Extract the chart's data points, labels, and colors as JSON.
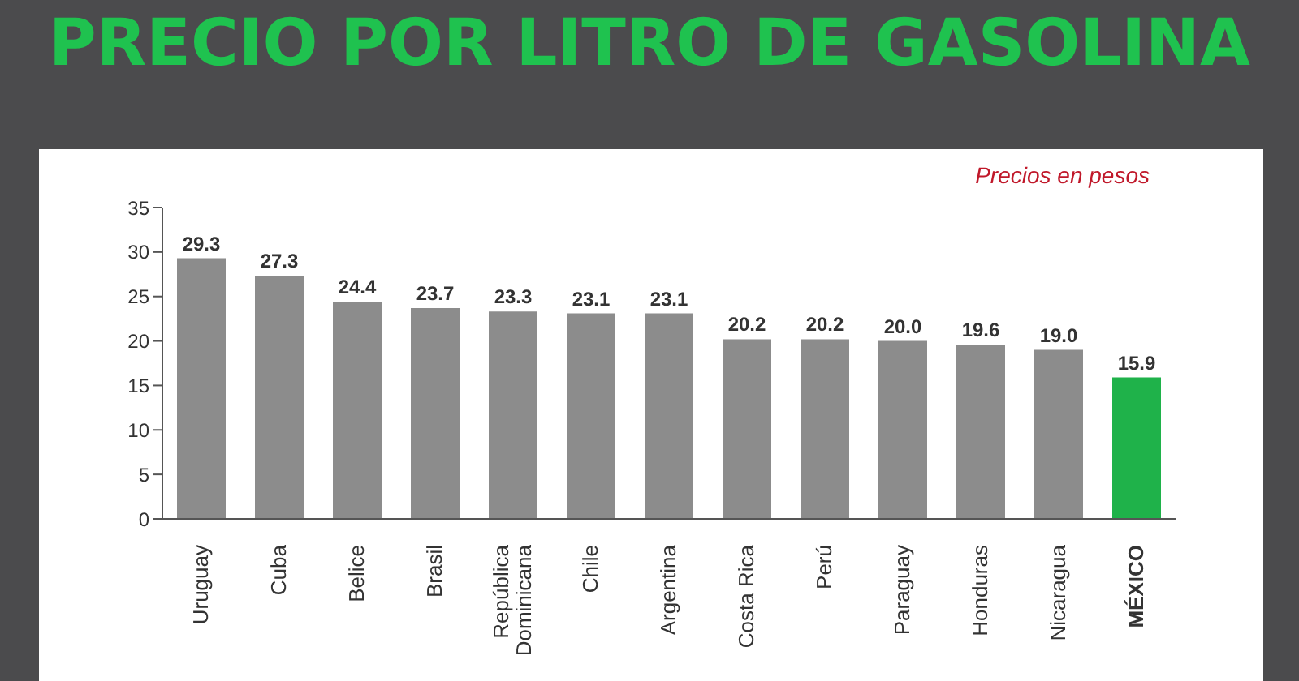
{
  "chart_data": {
    "type": "bar",
    "title": "PRECIO POR LITRO DE GASOLINA",
    "annotations": [
      "Precios en pesos"
    ],
    "categories": [
      "Uruguay",
      "Cuba",
      "Belice",
      "Brasil",
      "República Dominicana",
      "Chile",
      "Argentina",
      "Costa Rica",
      "Perú",
      "Paraguay",
      "Honduras",
      "Nicaragua",
      "MÉXICO"
    ],
    "values": [
      29.3,
      27.3,
      24.4,
      23.7,
      23.3,
      23.1,
      23.1,
      20.2,
      20.2,
      20.0,
      19.6,
      19.0,
      15.9
    ],
    "colors": [
      "#8c8c8c",
      "#8c8c8c",
      "#8c8c8c",
      "#8c8c8c",
      "#8c8c8c",
      "#8c8c8c",
      "#8c8c8c",
      "#8c8c8c",
      "#8c8c8c",
      "#8c8c8c",
      "#8c8c8c",
      "#8c8c8c",
      "#1fb24a"
    ],
    "value_labels": [
      "29.3",
      "27.3",
      "24.4",
      "23.7",
      "23.3",
      "23.1",
      "23.1",
      "20.2",
      "20.2",
      "20.0",
      "19.6",
      "19.0",
      "15.9"
    ],
    "ylim": [
      0,
      35
    ],
    "yticks": [
      0,
      5,
      10,
      15,
      20,
      25,
      30,
      35
    ],
    "grid": false,
    "legend": false
  }
}
